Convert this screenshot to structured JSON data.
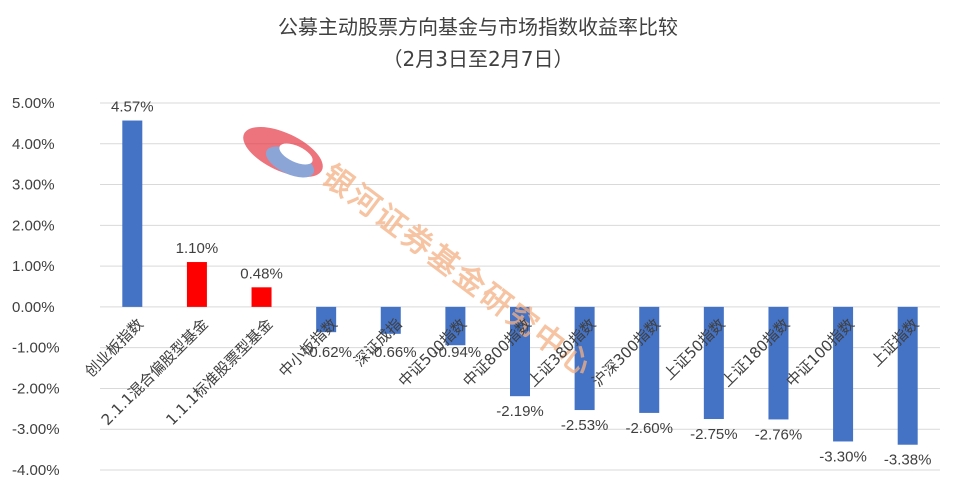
{
  "chart_data": {
    "type": "bar",
    "title": "公募主动股票方向基金与市场指数收益率比较",
    "subtitle": "（2月3日至2月7日）",
    "xlabel": "",
    "ylabel": "",
    "ylim": [
      -4,
      5
    ],
    "yticks": [
      "5.00%",
      "4.00%",
      "3.00%",
      "2.00%",
      "1.00%",
      "0.00%",
      "-1.00%",
      "-2.00%",
      "-3.00%",
      "-4.00%"
    ],
    "grid": true,
    "legend": "none",
    "categories": [
      "创业板指数",
      "2.1.1混合偏股型基金",
      "1.1.1标准股票型基金",
      "中小板指数",
      "深证成指",
      "中证500指数",
      "中证800指数",
      "上证380指数",
      "沪深300指数",
      "上证50指数",
      "上证180指数",
      "中证100指数",
      "上证指数"
    ],
    "values": [
      4.57,
      1.1,
      0.48,
      -0.62,
      -0.66,
      -0.94,
      -2.19,
      -2.53,
      -2.6,
      -2.75,
      -2.76,
      -3.3,
      -3.38
    ],
    "data_labels": [
      "4.57%",
      "1.10%",
      "0.48%",
      "-0.62%",
      "-0.66%",
      "-0.94%",
      "-2.19%",
      "-2.53%",
      "-2.60%",
      "-2.75%",
      "-2.76%",
      "-3.30%",
      "-3.38%"
    ],
    "colors": [
      "#4472c4",
      "#ff0000",
      "#ff0000",
      "#4472c4",
      "#4472c4",
      "#4472c4",
      "#4472c4",
      "#4472c4",
      "#4472c4",
      "#4472c4",
      "#4472c4",
      "#4472c4",
      "#4472c4"
    ]
  },
  "watermark": {
    "text": "银河证券基金研究中心",
    "colors": [
      "#e63946",
      "#5b7fc7"
    ]
  }
}
